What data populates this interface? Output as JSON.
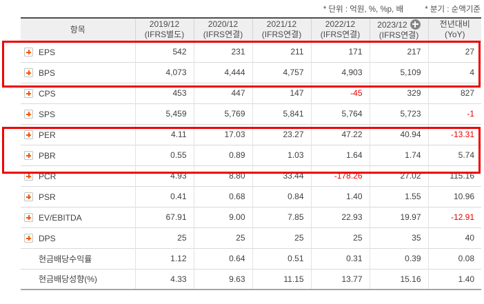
{
  "notes": {
    "unit": "* 단위 : 억원, %, %p, 배",
    "basis": "* 분기 : 순액기준"
  },
  "table": {
    "header": {
      "item_label": "항목",
      "year_columns": [
        {
          "period": "2019/12",
          "standard": "(IFRS별도)",
          "has_plus_icon": false
        },
        {
          "period": "2020/12",
          "standard": "(IFRS연결)",
          "has_plus_icon": false
        },
        {
          "period": "2021/12",
          "standard": "(IFRS연결)",
          "has_plus_icon": false
        },
        {
          "period": "2022/12",
          "standard": "(IFRS연결)",
          "has_plus_icon": false
        },
        {
          "period": "2023/12",
          "standard": "(IFRS연결)",
          "has_plus_icon": true
        }
      ],
      "yoy_column": {
        "line1": "전년대비",
        "line2": "(YoY)"
      }
    },
    "rows": [
      {
        "label": "EPS",
        "expandable": true,
        "values": [
          "542",
          "231",
          "211",
          "171",
          "217",
          "27"
        ]
      },
      {
        "label": "BPS",
        "expandable": true,
        "values": [
          "4,073",
          "4,444",
          "4,757",
          "4,903",
          "5,109",
          "4"
        ]
      },
      {
        "label": "CPS",
        "expandable": true,
        "values": [
          "453",
          "447",
          "147",
          "-45",
          "329",
          "827"
        ]
      },
      {
        "label": "SPS",
        "expandable": true,
        "values": [
          "5,459",
          "5,769",
          "5,841",
          "5,764",
          "5,723",
          "-1"
        ]
      },
      {
        "label": "PER",
        "expandable": true,
        "values": [
          "4.11",
          "17.03",
          "23.27",
          "47.22",
          "40.94",
          "-13.31"
        ]
      },
      {
        "label": "PBR",
        "expandable": true,
        "values": [
          "0.55",
          "0.89",
          "1.03",
          "1.64",
          "1.74",
          "5.74"
        ]
      },
      {
        "label": "PCR",
        "expandable": true,
        "values": [
          "4.93",
          "8.80",
          "33.44",
          "-178.26",
          "27.02",
          "115.16"
        ]
      },
      {
        "label": "PSR",
        "expandable": true,
        "values": [
          "0.41",
          "0.68",
          "0.84",
          "1.40",
          "1.55",
          "10.96"
        ]
      },
      {
        "label": "EV/EBITDA",
        "expandable": true,
        "values": [
          "67.91",
          "9.00",
          "7.85",
          "22.93",
          "19.97",
          "-12.91"
        ]
      },
      {
        "label": "DPS",
        "expandable": true,
        "values": [
          "25",
          "25",
          "25",
          "25",
          "35",
          "40"
        ]
      },
      {
        "label": "현금배당수익률",
        "expandable": false,
        "values": [
          "1.12",
          "0.64",
          "0.51",
          "0.31",
          "0.39",
          "0.08"
        ]
      },
      {
        "label": "현금배당성향(%)",
        "expandable": false,
        "values": [
          "4.33",
          "9.63",
          "11.15",
          "13.77",
          "15.16",
          "1.40"
        ]
      }
    ],
    "highlighted_row_groups": [
      [
        "EPS",
        "BPS"
      ],
      [
        "PER",
        "PBR"
      ]
    ]
  },
  "colors": {
    "negative_value": "#e60000",
    "highlight_border": "#ee0000",
    "expand_icon_plus": "#f25705",
    "header_background": "#efefef",
    "add_period_icon_background": "#868686"
  }
}
